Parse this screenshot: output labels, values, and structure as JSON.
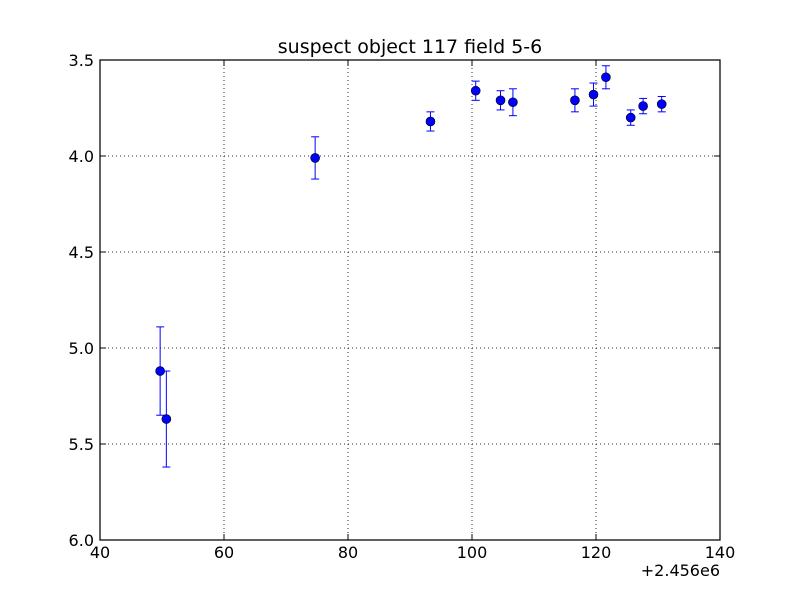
{
  "chart_data": {
    "type": "scatter",
    "title": "suspect object 117 field 5-6",
    "xlabel": "",
    "ylabel": "",
    "x_offset_label": "+2.456e6",
    "xlim": [
      40,
      140
    ],
    "ylim": [
      6.0,
      3.5
    ],
    "y_inverted": true,
    "grid": true,
    "x_ticks": [
      40,
      60,
      80,
      100,
      120,
      140
    ],
    "x_tick_labels": [
      "40",
      "60",
      "80",
      "100",
      "120",
      "140"
    ],
    "y_ticks": [
      3.5,
      4.0,
      4.5,
      5.0,
      5.5,
      6.0
    ],
    "y_tick_labels": [
      "3.5",
      "4.0",
      "4.5",
      "5.0",
      "5.5",
      "6.0"
    ],
    "marker_color": "#0000ff",
    "series": [
      {
        "points": [
          {
            "x": 49.7,
            "y": 5.12,
            "err": 0.23
          },
          {
            "x": 50.7,
            "y": 5.37,
            "err": 0.25
          },
          {
            "x": 74.7,
            "y": 4.01,
            "err": 0.11
          },
          {
            "x": 93.3,
            "y": 3.82,
            "err": 0.05
          },
          {
            "x": 100.6,
            "y": 3.66,
            "err": 0.05
          },
          {
            "x": 104.6,
            "y": 3.71,
            "err": 0.05
          },
          {
            "x": 106.6,
            "y": 3.72,
            "err": 0.07
          },
          {
            "x": 116.6,
            "y": 3.71,
            "err": 0.06
          },
          {
            "x": 119.6,
            "y": 3.68,
            "err": 0.06
          },
          {
            "x": 121.6,
            "y": 3.59,
            "err": 0.06
          },
          {
            "x": 125.6,
            "y": 3.8,
            "err": 0.04
          },
          {
            "x": 127.6,
            "y": 3.74,
            "err": 0.04
          },
          {
            "x": 130.6,
            "y": 3.73,
            "err": 0.04
          }
        ]
      }
    ]
  }
}
